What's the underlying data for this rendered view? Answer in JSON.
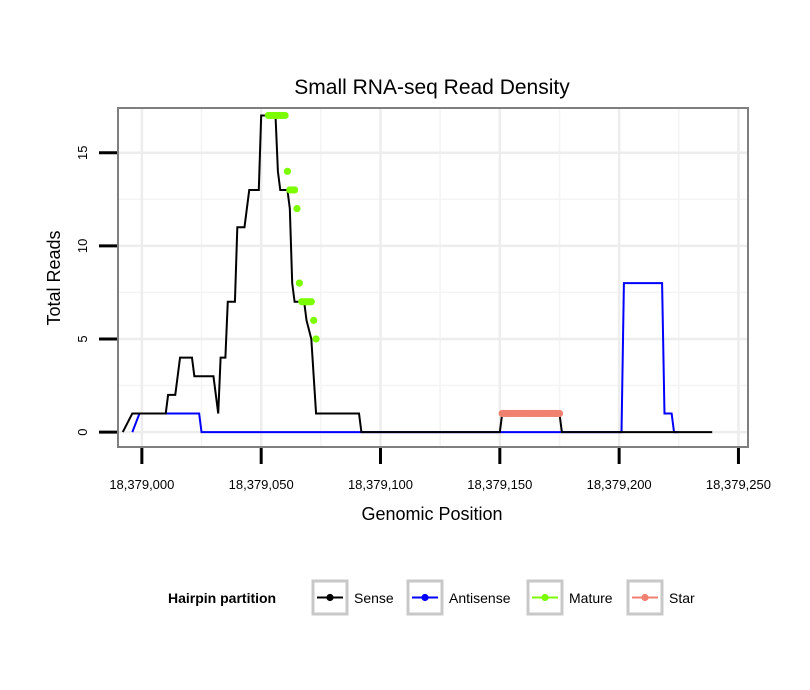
{
  "chart_data": {
    "type": "line",
    "title": "Small RNA-seq Read Density",
    "xlabel": "Genomic Position",
    "ylabel": "Total Reads",
    "xlim": [
      18378990,
      18379254
    ],
    "ylim": [
      -0.8,
      17.4
    ],
    "x_ticks": [
      18379000,
      18379050,
      18379100,
      18379150,
      18379200,
      18379250
    ],
    "x_tick_labels": [
      "18,379,000",
      "18,379,050",
      "18,379,100",
      "18,379,150",
      "18,379,200",
      "18,379,250"
    ],
    "y_ticks": [
      0,
      5,
      10,
      15
    ],
    "y_tick_labels": [
      "0",
      "5",
      "10",
      "15"
    ],
    "grid": true,
    "legend": {
      "title": "Hairpin partition",
      "position": "bottom",
      "entries": [
        {
          "label": "Sense",
          "color": "#000000"
        },
        {
          "label": "Antisense",
          "color": "#0000ff"
        },
        {
          "label": "Mature",
          "color": "#7cfc00"
        },
        {
          "label": "Star",
          "color": "#f08070"
        }
      ]
    },
    "series": [
      {
        "name": "Sense",
        "color": "#000000",
        "kind": "step",
        "points": [
          [
            18378992,
            0
          ],
          [
            18378996,
            1
          ],
          [
            18379010,
            1
          ],
          [
            18379011,
            2
          ],
          [
            18379014,
            2
          ],
          [
            18379015,
            3
          ],
          [
            18379016,
            4
          ],
          [
            18379021,
            4
          ],
          [
            18379022,
            3
          ],
          [
            18379030,
            3
          ],
          [
            18379031,
            2
          ],
          [
            18379032,
            1
          ],
          [
            18379033,
            4
          ],
          [
            18379035,
            4
          ],
          [
            18379036,
            7
          ],
          [
            18379039,
            7
          ],
          [
            18379040,
            11
          ],
          [
            18379043,
            11
          ],
          [
            18379044,
            12
          ],
          [
            18379045,
            13
          ],
          [
            18379049,
            13
          ],
          [
            18379050,
            17
          ],
          [
            18379056,
            17
          ],
          [
            18379057,
            14
          ],
          [
            18379058,
            13
          ],
          [
            18379061,
            13
          ],
          [
            18379062,
            12
          ],
          [
            18379063,
            8
          ],
          [
            18379064,
            7
          ],
          [
            18379068,
            7
          ],
          [
            18379069,
            6
          ],
          [
            18379071,
            5
          ],
          [
            18379072,
            3
          ],
          [
            18379073,
            1
          ],
          [
            18379091,
            1
          ],
          [
            18379092,
            0
          ],
          [
            18379150,
            0
          ],
          [
            18379151,
            1
          ],
          [
            18379175,
            1
          ],
          [
            18379176,
            0
          ],
          [
            18379239,
            0
          ]
        ]
      },
      {
        "name": "Antisense",
        "color": "#0000ff",
        "kind": "step",
        "points": [
          [
            18378996,
            0
          ],
          [
            18378999,
            1
          ],
          [
            18379024,
            1
          ],
          [
            18379025,
            0
          ],
          [
            18379201,
            0
          ],
          [
            18379202,
            8
          ],
          [
            18379218,
            8
          ],
          [
            18379219,
            1
          ],
          [
            18379222,
            1
          ],
          [
            18379223,
            0
          ],
          [
            18379225,
            0
          ]
        ]
      },
      {
        "name": "Mature",
        "color": "#7cfc00",
        "kind": "points",
        "points": [
          [
            18379053,
            17
          ],
          [
            18379054,
            17
          ],
          [
            18379055,
            17
          ],
          [
            18379056,
            17
          ],
          [
            18379057,
            17
          ],
          [
            18379058,
            17
          ],
          [
            18379059,
            17
          ],
          [
            18379060,
            17
          ],
          [
            18379061,
            14
          ],
          [
            18379062,
            13
          ],
          [
            18379063,
            13
          ],
          [
            18379064,
            13
          ],
          [
            18379065,
            12
          ],
          [
            18379066,
            8
          ],
          [
            18379067,
            7
          ],
          [
            18379068,
            7
          ],
          [
            18379069,
            7
          ],
          [
            18379070,
            7
          ],
          [
            18379071,
            7
          ],
          [
            18379072,
            6
          ],
          [
            18379073,
            5
          ]
        ]
      },
      {
        "name": "Star",
        "color": "#f08070",
        "kind": "points",
        "points": [
          [
            18379151,
            1
          ],
          [
            18379152,
            1
          ],
          [
            18379153,
            1
          ],
          [
            18379154,
            1
          ],
          [
            18379155,
            1
          ],
          [
            18379156,
            1
          ],
          [
            18379157,
            1
          ],
          [
            18379158,
            1
          ],
          [
            18379159,
            1
          ],
          [
            18379160,
            1
          ],
          [
            18379161,
            1
          ],
          [
            18379162,
            1
          ],
          [
            18379163,
            1
          ],
          [
            18379164,
            1
          ],
          [
            18379165,
            1
          ],
          [
            18379166,
            1
          ],
          [
            18379167,
            1
          ],
          [
            18379168,
            1
          ],
          [
            18379169,
            1
          ],
          [
            18379170,
            1
          ],
          [
            18379171,
            1
          ],
          [
            18379172,
            1
          ],
          [
            18379173,
            1
          ],
          [
            18379174,
            1
          ],
          [
            18379175,
            1
          ]
        ]
      }
    ]
  }
}
